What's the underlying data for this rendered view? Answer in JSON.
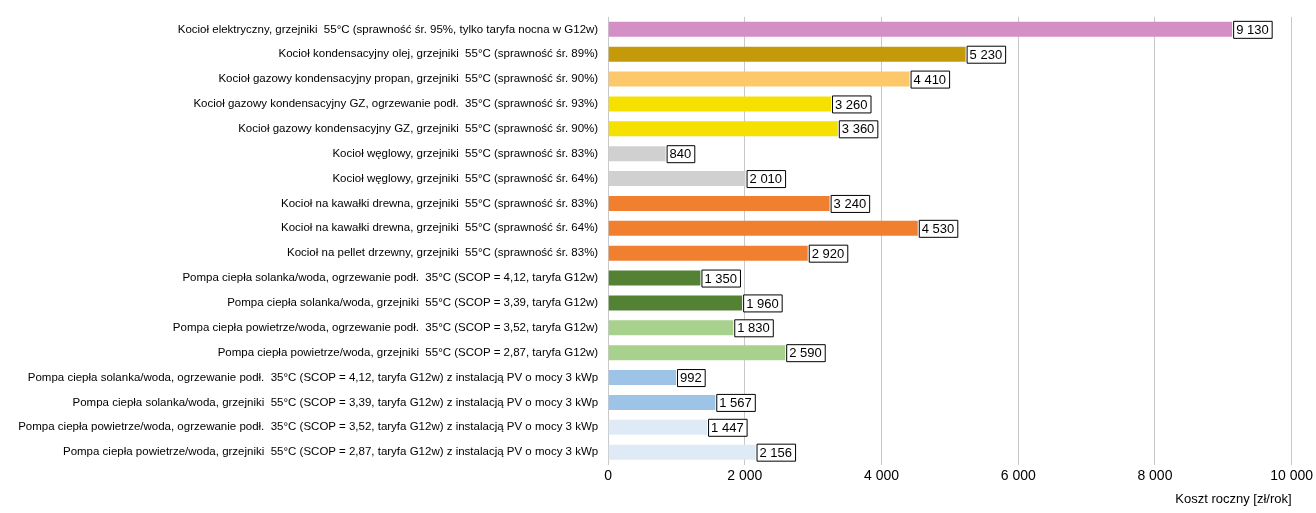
{
  "chart_data": {
    "type": "bar",
    "orientation": "horizontal",
    "xlabel": "Koszt roczny [zł/rok]",
    "categories": [
      "Kocioł elektryczny, grzejniki  55°C (sprawność śr. 95%, tylko taryfa nocna w G12w)",
      "Kocioł kondensacyjny olej, grzejniki  55°C (sprawność śr. 89%)",
      "Kocioł gazowy kondensacyjny propan, grzejniki  55°C (sprawność śr. 90%)",
      "Kocioł gazowy kondensacyjny GZ, ogrzewanie podł.  35°C (sprawność śr. 93%)",
      "Kocioł gazowy kondensacyjny GZ, grzejniki  55°C (sprawność śr. 90%)",
      "Kocioł węglowy, grzejniki  55°C (sprawność śr. 83%)",
      "Kocioł węglowy, grzejniki  55°C (sprawność śr. 64%)",
      "Kocioł na kawałki drewna, grzejniki  55°C (sprawność śr. 83%)",
      "Kocioł na kawałki drewna, grzejniki  55°C (sprawność śr. 64%)",
      "Kocioł na pellet drzewny, grzejniki  55°C (sprawność śr. 83%)",
      "Pompa ciepła solanka/woda, ogrzewanie podł.  35°C (SCOP = 4,12, taryfa G12w)",
      "Pompa ciepła solanka/woda, grzejniki  55°C (SCOP = 3,39, taryfa G12w)",
      "Pompa ciepła powietrze/woda, ogrzewanie podł.  35°C (SCOP = 3,52, taryfa G12w)",
      "Pompa ciepła powietrze/woda, grzejniki  55°C (SCOP = 2,87, taryfa G12w)",
      "Pompa ciepła solanka/woda, ogrzewanie podł.  35°C (SCOP = 4,12, taryfa G12w) z instalacją PV o mocy 3 kWp",
      "Pompa ciepła solanka/woda, grzejniki  55°C (SCOP = 3,39, taryfa G12w) z instalacją PV o mocy 3 kWp",
      "Pompa ciepła powietrze/woda, ogrzewanie podł.  35°C (SCOP = 3,52, taryfa G12w) z instalacją PV o mocy 3 kWp",
      "Pompa ciepła powietrze/woda, grzejniki  55°C (SCOP = 2,87, taryfa G12w) z instalacją PV o mocy 3 kWp"
    ],
    "values": [
      9130,
      5230,
      4410,
      3260,
      3360,
      840,
      2010,
      3240,
      4530,
      2920,
      1350,
      1960,
      1830,
      2590,
      992,
      1567,
      1447,
      2156
    ],
    "value_labels": [
      "9 130",
      "5 230",
      "4 410",
      "3 260",
      "3 360",
      "840",
      "2 010",
      "3 240",
      "4 530",
      "2 920",
      "1 350",
      "1 960",
      "1 830",
      "2 590",
      "992",
      "1 567",
      "1 447",
      "2 156"
    ],
    "colors": [
      "#d48fc4",
      "#c49a0a",
      "#fdc86a",
      "#f5e000",
      "#f5e000",
      "#d0d0d0",
      "#d0d0d0",
      "#f08030",
      "#f08030",
      "#f08030",
      "#548235",
      "#548235",
      "#a9d18e",
      "#a9d18e",
      "#9dc3e6",
      "#9dc3e6",
      "#deebf7",
      "#deebf7"
    ],
    "xlim": [
      0,
      10000
    ],
    "xticks": [
      0,
      {
        "value": 2000,
        "label": "2 000"
      },
      {
        "value": 4000,
        "label": "4 000"
      },
      {
        "value": 6000,
        "label": "6 000"
      },
      {
        "value": 8000,
        "label": "8 000"
      },
      {
        "value": 10000,
        "label": "10 000"
      }
    ],
    "grid": "x",
    "legend": false
  }
}
